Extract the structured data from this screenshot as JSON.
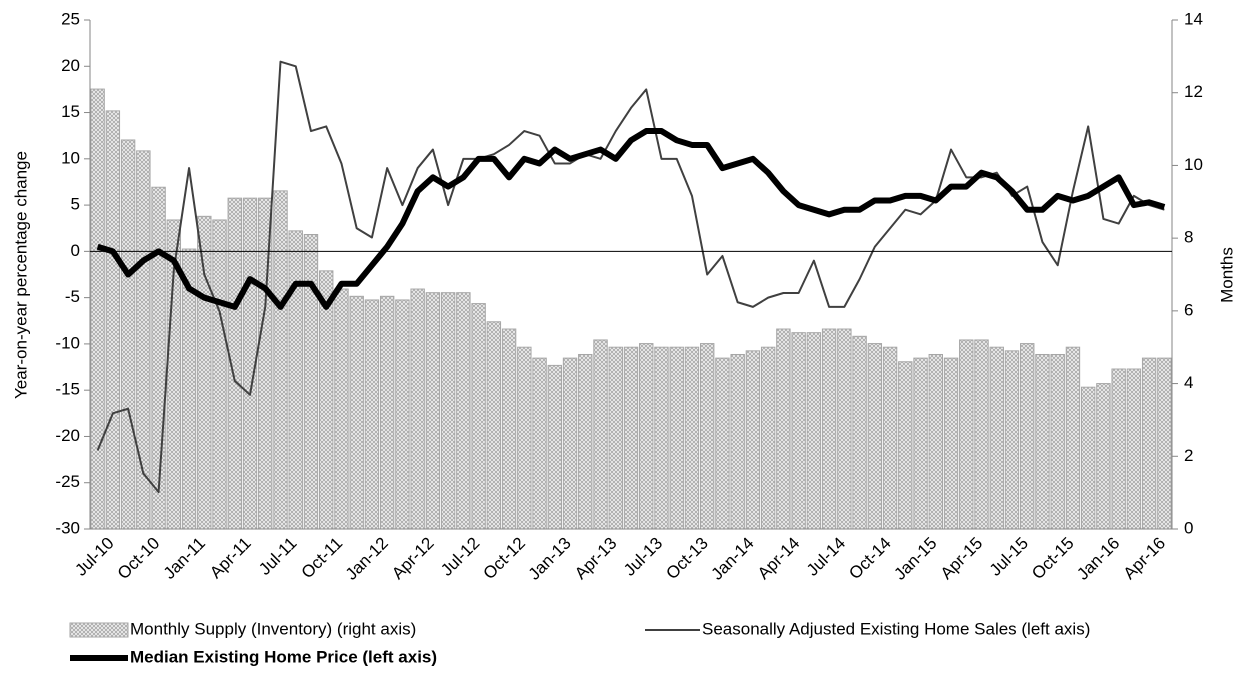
{
  "chart_data": {
    "type": "bar-line",
    "y_label": "Year-on-year percentage change",
    "y2_label": "Months",
    "categories": [
      "Jul-10",
      null,
      null,
      "Oct-10",
      null,
      null,
      "Jan-11",
      null,
      null,
      "Apr-11",
      null,
      null,
      "Jul-11",
      null,
      null,
      "Oct-11",
      null,
      null,
      "Jan-12",
      null,
      null,
      "Apr-12",
      null,
      null,
      "Jul-12",
      null,
      null,
      "Oct-12",
      null,
      null,
      "Jan-13",
      null,
      null,
      "Apr-13",
      null,
      null,
      "Jul-13",
      null,
      null,
      "Oct-13",
      null,
      null,
      "Jan-14",
      null,
      null,
      "Apr-14",
      null,
      null,
      "Jul-14",
      null,
      null,
      "Oct-14",
      null,
      null,
      "Jan-15",
      null,
      null,
      "Apr-15",
      null,
      null,
      "Jul-15",
      null,
      null,
      "Oct-15",
      null,
      null,
      "Jan-16",
      null,
      null,
      "Apr-16",
      null
    ],
    "series": [
      {
        "name": "Monthly Supply (Inventory) (right axis)",
        "type": "bar",
        "axis": "y2",
        "color": "#a6a6a6",
        "values": [
          12.1,
          11.5,
          10.7,
          10.4,
          9.4,
          8.5,
          7.7,
          8.6,
          8.5,
          9.1,
          9.1,
          9.1,
          9.3,
          8.2,
          8.1,
          7.1,
          6.6,
          6.4,
          6.3,
          6.4,
          6.3,
          6.6,
          6.5,
          6.5,
          6.5,
          6.2,
          5.7,
          5.5,
          5.0,
          4.7,
          4.5,
          4.7,
          4.8,
          5.2,
          5.0,
          5.0,
          5.1,
          5.0,
          5.0,
          5.0,
          5.1,
          4.7,
          4.8,
          4.9,
          5.0,
          5.5,
          5.4,
          5.4,
          5.5,
          5.5,
          5.3,
          5.1,
          5.0,
          4.6,
          4.7,
          4.8,
          4.7,
          5.2,
          5.2,
          5.0,
          4.9,
          5.1,
          4.8,
          4.8,
          5.0,
          3.9,
          4.0,
          4.4,
          4.4,
          4.7,
          4.7
        ]
      },
      {
        "name": "Seasonally Adjusted Existing Home Sales (left axis)",
        "type": "line",
        "color": "#404040",
        "width": 2,
        "values": [
          -21.5,
          -17.5,
          -17,
          -24,
          -26,
          -2,
          9,
          -2.5,
          -6.5,
          -14,
          -15.5,
          -6,
          20.5,
          20,
          13,
          13.5,
          9.5,
          2.5,
          1.5,
          9,
          5,
          9,
          11,
          5,
          10,
          10,
          10.5,
          11.5,
          13,
          12.5,
          9.5,
          9.5,
          10.5,
          10,
          13,
          15.5,
          17.5,
          10,
          10,
          6,
          -2.5,
          -0.5,
          -5.5,
          -6,
          -5,
          -4.5,
          -4.5,
          -1,
          -6,
          -6,
          -3,
          0.5,
          2.5,
          4.5,
          4,
          5.5,
          11,
          8,
          8,
          8.5,
          6,
          7,
          1,
          -1.5,
          6.5,
          13.5,
          3.5,
          3,
          6,
          5,
          4.5
        ]
      },
      {
        "name": "Median Existing Home Price (left axis)",
        "type": "line",
        "color": "#000000",
        "width": 6,
        "values": [
          0.5,
          0,
          -2.5,
          -1,
          0,
          -1,
          -4,
          -5,
          -5.5,
          -6,
          -3,
          -4,
          -6,
          -3.5,
          -3.5,
          -6,
          -3.5,
          -3.5,
          -1.5,
          0.5,
          3,
          6.5,
          8,
          7,
          8,
          10,
          10,
          8,
          10,
          9.5,
          11,
          10,
          10.5,
          11,
          10,
          12,
          13,
          13,
          12,
          11.5,
          11.5,
          9,
          9.5,
          10,
          8.5,
          6.5,
          5,
          4.5,
          4,
          4.5,
          4.5,
          5.5,
          5.5,
          6,
          6,
          5.5,
          7,
          7,
          8.5,
          8,
          6.5,
          4.5,
          4.5,
          6,
          5.5,
          6,
          7,
          8,
          5,
          5.3,
          4.8
        ]
      }
    ],
    "ylim": [
      -30,
      25
    ],
    "yticks": [
      -30,
      -25,
      -20,
      -15,
      -10,
      -5,
      0,
      5,
      10,
      15,
      20,
      25
    ],
    "y2lim": [
      0,
      14
    ],
    "y2ticks": [
      0,
      2,
      4,
      6,
      8,
      10,
      12,
      14
    ],
    "grid": false
  }
}
